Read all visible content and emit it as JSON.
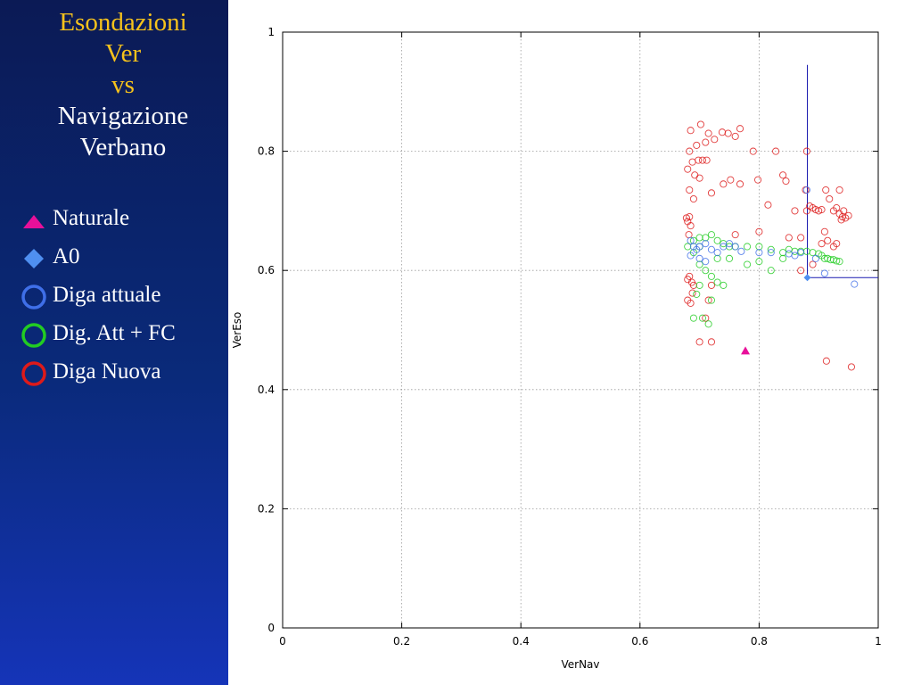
{
  "colors": {
    "title_accent": "#f6c21c",
    "title_plain": "#ffffff",
    "naturale": "#e8109a",
    "a0": "#4f8ff0",
    "diga_attuale": "#3f6fe8",
    "dig_att_fc": "#22cc22",
    "diga_nuova": "#dd1a1a",
    "crosshair": "#1a1ab0"
  },
  "sidebar": {
    "title_lines": [
      {
        "text": "Esondazioni",
        "accent": true
      },
      {
        "text": "Ver",
        "accent": true
      },
      {
        "text": "vs",
        "accent": true
      },
      {
        "text": "Navigazione",
        "accent": false
      },
      {
        "text": "Verbano",
        "accent": false
      }
    ],
    "legend": [
      {
        "label": "Naturale",
        "icon": "triangle-icon"
      },
      {
        "label": "A0",
        "icon": "diamond-icon"
      },
      {
        "label": "Diga attuale",
        "icon": "ring-blue-icon"
      },
      {
        "label": "Dig. Att + FC",
        "icon": "ring-green-icon"
      },
      {
        "label": "Diga Nuova",
        "icon": "ring-red-icon"
      }
    ]
  },
  "chart_data": {
    "type": "scatter",
    "title": "",
    "xlabel": "VerNav",
    "ylabel": "VerEso",
    "xlim": [
      0,
      1
    ],
    "ylim": [
      0,
      1
    ],
    "xticks": [
      0,
      0.2,
      0.4,
      0.6,
      0.8,
      1
    ],
    "yticks": [
      0,
      0.2,
      0.4,
      0.6,
      0.8,
      1
    ],
    "xtick_labels": [
      "0",
      "0.2",
      "0.4",
      "0.6",
      "0.8",
      "1"
    ],
    "ytick_labels": [
      "0",
      "0.2",
      "0.4",
      "0.6",
      "0.8",
      "1"
    ],
    "grid": true,
    "crosshair": {
      "x": 0.881,
      "y": 0.588,
      "ytop": 0.945,
      "xright": 1.0
    },
    "series": [
      {
        "name": "Diga Nuova",
        "marker": "circle",
        "color": "#dd1a1a",
        "points": [
          [
            0.685,
            0.835
          ],
          [
            0.702,
            0.845
          ],
          [
            0.715,
            0.83
          ],
          [
            0.738,
            0.832
          ],
          [
            0.748,
            0.83
          ],
          [
            0.768,
            0.838
          ],
          [
            0.683,
            0.8
          ],
          [
            0.695,
            0.81
          ],
          [
            0.71,
            0.815
          ],
          [
            0.725,
            0.82
          ],
          [
            0.76,
            0.825
          ],
          [
            0.79,
            0.8
          ],
          [
            0.828,
            0.8
          ],
          [
            0.88,
            0.8
          ],
          [
            0.688,
            0.782
          ],
          [
            0.698,
            0.785
          ],
          [
            0.705,
            0.785
          ],
          [
            0.712,
            0.785
          ],
          [
            0.68,
            0.77
          ],
          [
            0.692,
            0.76
          ],
          [
            0.7,
            0.755
          ],
          [
            0.74,
            0.745
          ],
          [
            0.752,
            0.752
          ],
          [
            0.768,
            0.745
          ],
          [
            0.798,
            0.752
          ],
          [
            0.84,
            0.76
          ],
          [
            0.845,
            0.75
          ],
          [
            0.878,
            0.735
          ],
          [
            0.683,
            0.735
          ],
          [
            0.69,
            0.72
          ],
          [
            0.72,
            0.73
          ],
          [
            0.815,
            0.71
          ],
          [
            0.86,
            0.7
          ],
          [
            0.88,
            0.7
          ],
          [
            0.905,
            0.702
          ],
          [
            0.912,
            0.735
          ],
          [
            0.935,
            0.735
          ],
          [
            0.918,
            0.72
          ],
          [
            0.93,
            0.705
          ],
          [
            0.925,
            0.7
          ],
          [
            0.935,
            0.695
          ],
          [
            0.94,
            0.69
          ],
          [
            0.945,
            0.688
          ],
          [
            0.938,
            0.685
          ],
          [
            0.942,
            0.7
          ],
          [
            0.95,
            0.692
          ],
          [
            0.885,
            0.708
          ],
          [
            0.89,
            0.705
          ],
          [
            0.895,
            0.702
          ],
          [
            0.9,
            0.7
          ],
          [
            0.678,
            0.688
          ],
          [
            0.68,
            0.682
          ],
          [
            0.683,
            0.69
          ],
          [
            0.685,
            0.675
          ],
          [
            0.682,
            0.66
          ],
          [
            0.76,
            0.66
          ],
          [
            0.8,
            0.665
          ],
          [
            0.85,
            0.655
          ],
          [
            0.87,
            0.655
          ],
          [
            0.91,
            0.665
          ],
          [
            0.93,
            0.645
          ],
          [
            0.925,
            0.64
          ],
          [
            0.905,
            0.645
          ],
          [
            0.87,
            0.6
          ],
          [
            0.89,
            0.61
          ],
          [
            0.915,
            0.65
          ],
          [
            0.68,
            0.585
          ],
          [
            0.683,
            0.59
          ],
          [
            0.687,
            0.58
          ],
          [
            0.69,
            0.575
          ],
          [
            0.688,
            0.562
          ],
          [
            0.68,
            0.55
          ],
          [
            0.685,
            0.545
          ],
          [
            0.72,
            0.575
          ],
          [
            0.715,
            0.55
          ],
          [
            0.71,
            0.52
          ],
          [
            0.7,
            0.48
          ],
          [
            0.72,
            0.48
          ],
          [
            0.913,
            0.448
          ],
          [
            0.955,
            0.438
          ]
        ]
      },
      {
        "name": "Dig. Att + FC",
        "marker": "circle",
        "color": "#22cc22",
        "points": [
          [
            0.68,
            0.64
          ],
          [
            0.69,
            0.65
          ],
          [
            0.7,
            0.655
          ],
          [
            0.71,
            0.655
          ],
          [
            0.72,
            0.66
          ],
          [
            0.73,
            0.65
          ],
          [
            0.74,
            0.645
          ],
          [
            0.75,
            0.64
          ],
          [
            0.76,
            0.64
          ],
          [
            0.78,
            0.64
          ],
          [
            0.8,
            0.64
          ],
          [
            0.82,
            0.635
          ],
          [
            0.84,
            0.63
          ],
          [
            0.85,
            0.635
          ],
          [
            0.86,
            0.632
          ],
          [
            0.87,
            0.632
          ],
          [
            0.88,
            0.632
          ],
          [
            0.89,
            0.63
          ],
          [
            0.9,
            0.628
          ],
          [
            0.905,
            0.625
          ],
          [
            0.91,
            0.62
          ],
          [
            0.915,
            0.62
          ],
          [
            0.92,
            0.618
          ],
          [
            0.925,
            0.618
          ],
          [
            0.93,
            0.616
          ],
          [
            0.935,
            0.615
          ],
          [
            0.7,
            0.61
          ],
          [
            0.71,
            0.6
          ],
          [
            0.72,
            0.59
          ],
          [
            0.73,
            0.58
          ],
          [
            0.74,
            0.575
          ],
          [
            0.7,
            0.575
          ],
          [
            0.695,
            0.56
          ],
          [
            0.69,
            0.52
          ],
          [
            0.705,
            0.52
          ],
          [
            0.715,
            0.51
          ],
          [
            0.72,
            0.55
          ],
          [
            0.73,
            0.62
          ],
          [
            0.75,
            0.62
          ],
          [
            0.78,
            0.61
          ],
          [
            0.8,
            0.615
          ],
          [
            0.82,
            0.6
          ],
          [
            0.84,
            0.62
          ],
          [
            0.69,
            0.63
          ],
          [
            0.7,
            0.64
          ]
        ]
      },
      {
        "name": "Diga attuale",
        "marker": "circle",
        "color": "#3f6fe8",
        "points": [
          [
            0.685,
            0.65
          ],
          [
            0.69,
            0.64
          ],
          [
            0.695,
            0.635
          ],
          [
            0.7,
            0.64
          ],
          [
            0.71,
            0.645
          ],
          [
            0.72,
            0.635
          ],
          [
            0.73,
            0.63
          ],
          [
            0.74,
            0.64
          ],
          [
            0.75,
            0.645
          ],
          [
            0.76,
            0.64
          ],
          [
            0.77,
            0.632
          ],
          [
            0.8,
            0.63
          ],
          [
            0.82,
            0.63
          ],
          [
            0.85,
            0.628
          ],
          [
            0.86,
            0.625
          ],
          [
            0.87,
            0.63
          ],
          [
            0.88,
            0.735
          ],
          [
            0.895,
            0.62
          ],
          [
            0.91,
            0.595
          ],
          [
            0.96,
            0.577
          ],
          [
            0.685,
            0.625
          ],
          [
            0.7,
            0.62
          ],
          [
            0.71,
            0.615
          ]
        ]
      },
      {
        "name": "A0",
        "marker": "diamond",
        "color": "#4f8ff0",
        "points": [
          [
            0.881,
            0.588
          ]
        ]
      },
      {
        "name": "Naturale",
        "marker": "triangle",
        "color": "#e8109a",
        "points": [
          [
            0.777,
            0.465
          ]
        ]
      }
    ]
  }
}
